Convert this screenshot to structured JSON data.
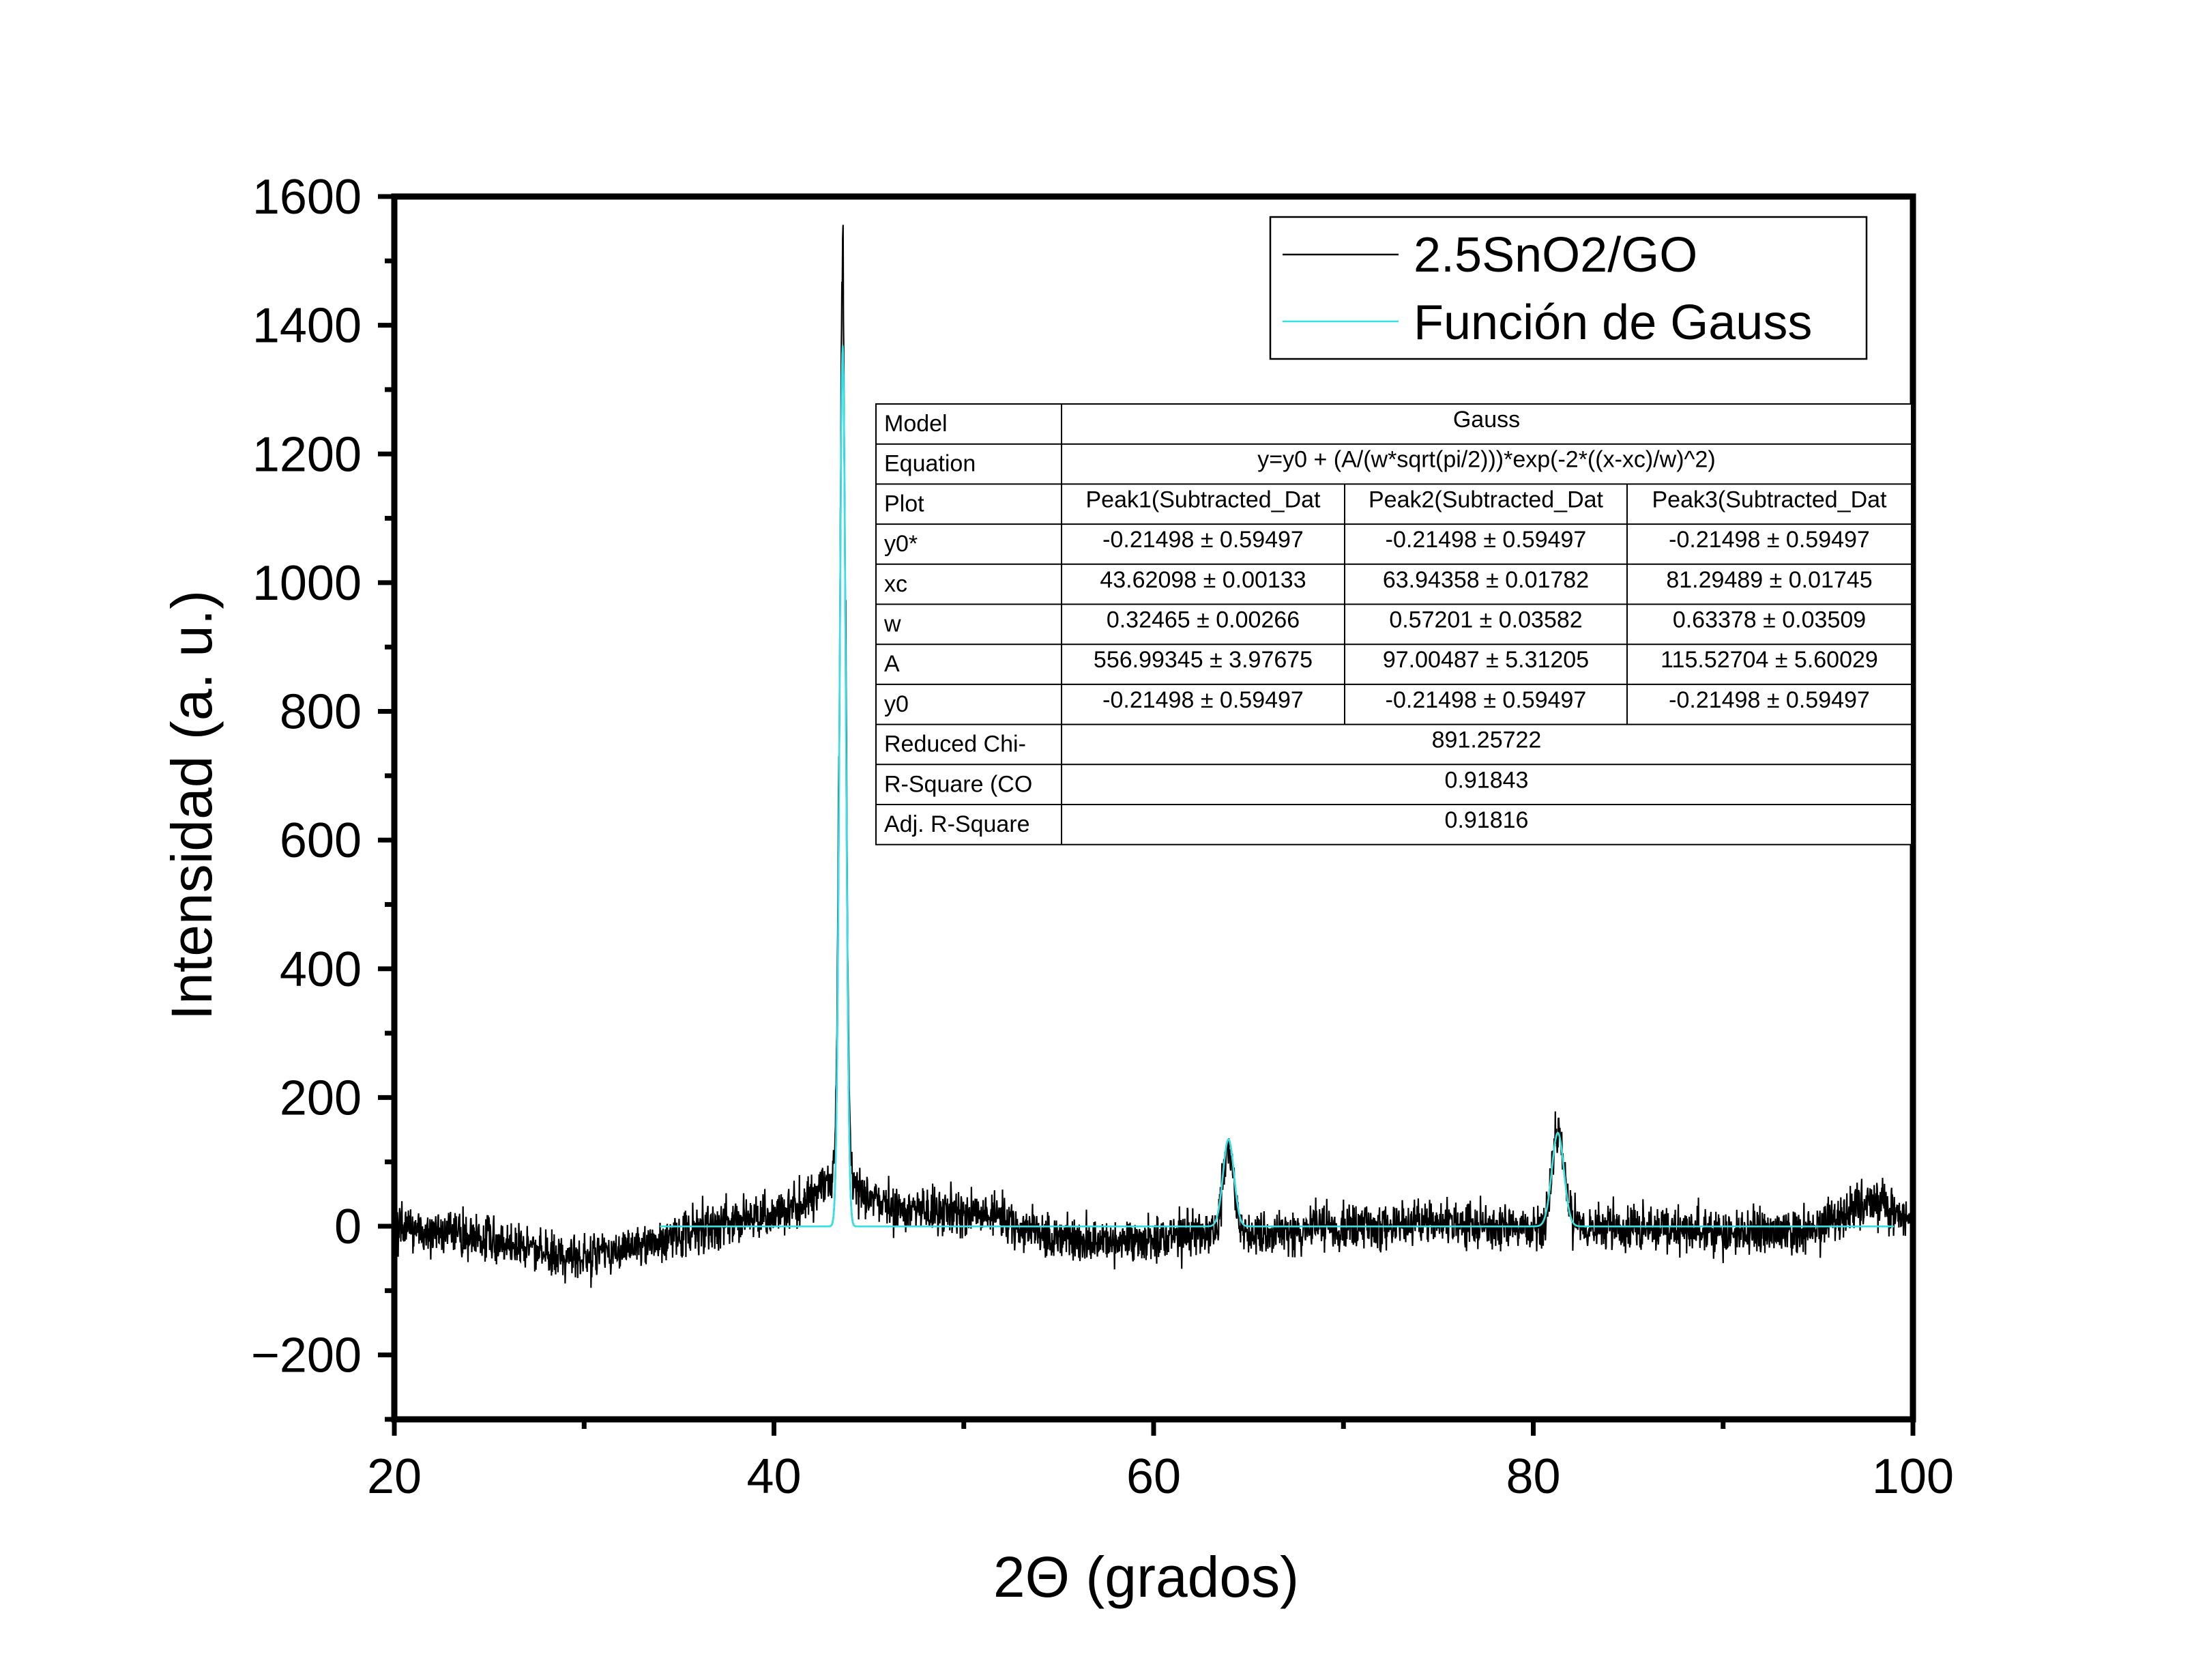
{
  "chart_data": {
    "type": "line",
    "title": "",
    "xlabel": "2Θ (grados)",
    "ylabel": "Intensidad (a. u.)",
    "xlim": [
      20,
      100
    ],
    "ylim": [
      -300,
      1600
    ],
    "x_ticks": [
      20,
      40,
      60,
      80,
      100
    ],
    "y_ticks": [
      -200,
      0,
      200,
      400,
      600,
      800,
      1000,
      1200,
      1400,
      1600
    ],
    "x_tick_labels": [
      "20",
      "40",
      "60",
      "80",
      "100"
    ],
    "y_tick_labels": [
      "−200",
      "0",
      "200",
      "400",
      "600",
      "800",
      "1000",
      "1200",
      "1400",
      "1600"
    ],
    "grid": false,
    "legend_position": "top-right",
    "series": [
      {
        "name": "2.5SnO2/GO",
        "color": "#000000",
        "kind": "measured-noisy",
        "peak_max": {
          "x": 43.6,
          "y": 1462
        },
        "baseline_points": [
          [
            20,
            0
          ],
          [
            24,
            -15
          ],
          [
            28,
            -40
          ],
          [
            30,
            -50
          ],
          [
            33,
            -30
          ],
          [
            36,
            -5
          ],
          [
            40,
            20
          ],
          [
            42,
            45
          ],
          [
            43.2,
            80
          ],
          [
            44.3,
            60
          ],
          [
            46,
            30
          ],
          [
            50,
            20
          ],
          [
            52,
            15
          ],
          [
            54,
            -10
          ],
          [
            56,
            -25
          ],
          [
            60,
            -20
          ],
          [
            62,
            -10
          ],
          [
            66,
            -10
          ],
          [
            70,
            0
          ],
          [
            75,
            5
          ],
          [
            80,
            0
          ],
          [
            83,
            0
          ],
          [
            86,
            -5
          ],
          [
            90,
            -10
          ],
          [
            95,
            -5
          ],
          [
            97,
            30
          ],
          [
            98,
            40
          ],
          [
            99,
            20
          ],
          [
            100,
            10
          ]
        ]
      },
      {
        "name": "Función de Gauss",
        "color": "#33e3e3",
        "kind": "gaussian-fit",
        "y0": -0.21498,
        "peaks": [
          {
            "xc": 43.62098,
            "w": 0.32465,
            "A": 556.99345,
            "color": "#2233cc"
          },
          {
            "xc": 63.94358,
            "w": 0.57201,
            "A": 97.00487,
            "color": "#2233cc"
          },
          {
            "xc": 81.29489,
            "w": 0.63378,
            "A": 115.52704,
            "color": "#22bb22"
          }
        ]
      }
    ],
    "fit_table": {
      "rows": [
        {
          "label": "Model",
          "span": "Gauss"
        },
        {
          "label": "Equation",
          "span": "y=y0 + (A/(w*sqrt(pi/2)))*exp(-2*((x-xc)/w)^2)"
        },
        {
          "label": "Plot",
          "cells": [
            "Peak1(Subtracted_Dat",
            "Peak2(Subtracted_Dat",
            "Peak3(Subtracted_Dat"
          ]
        },
        {
          "label": "y0*",
          "cells": [
            "-0.21498 ± 0.59497",
            "-0.21498 ± 0.59497",
            "-0.21498 ± 0.59497"
          ]
        },
        {
          "label": "xc",
          "cells": [
            "43.62098 ± 0.00133",
            "63.94358 ± 0.01782",
            "81.29489 ± 0.01745"
          ]
        },
        {
          "label": "w",
          "cells": [
            "0.32465 ± 0.00266",
            "0.57201 ± 0.03582",
            "0.63378 ± 0.03509"
          ]
        },
        {
          "label": "A",
          "cells": [
            "556.99345 ± 3.97675",
            "97.00487 ± 5.31205",
            "115.52704 ± 5.60029"
          ]
        },
        {
          "label": "y0",
          "cells": [
            "-0.21498 ± 0.59497",
            "-0.21498 ± 0.59497",
            "-0.21498 ± 0.59497"
          ]
        },
        {
          "label": "Reduced Chi-",
          "span": "891.25722"
        },
        {
          "label": "R-Square (CO",
          "span": "0.91843"
        },
        {
          "label": "Adj. R-Square",
          "span": "0.91816"
        }
      ]
    }
  }
}
